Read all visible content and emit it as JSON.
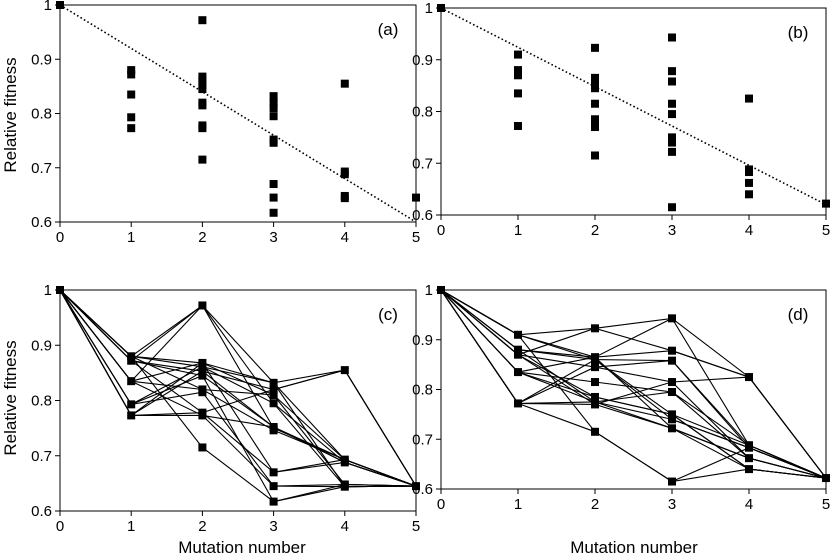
{
  "figure": {
    "ylabel": "Relative fitness",
    "xlabel": "Mutation number"
  },
  "chart_data": [
    {
      "panel": "(a)",
      "type": "scatter",
      "xlim": [
        0,
        5
      ],
      "ylim": [
        0.6,
        1
      ],
      "xticks": [
        "0",
        "1",
        "2",
        "3",
        "4",
        "5"
      ],
      "yticks": [
        "0.6",
        "0.7",
        "0.8",
        "0.9",
        "1"
      ],
      "ylabel": "Relative fitness",
      "xlabel": "",
      "points": [
        [
          0,
          1
        ],
        [
          1,
          0.88
        ],
        [
          1,
          0.872
        ],
        [
          1,
          0.835
        ],
        [
          1,
          0.793
        ],
        [
          1,
          0.773
        ],
        [
          2,
          0.972
        ],
        [
          2,
          0.868
        ],
        [
          2,
          0.861
        ],
        [
          2,
          0.853
        ],
        [
          2,
          0.845
        ],
        [
          2,
          0.82
        ],
        [
          2,
          0.815
        ],
        [
          2,
          0.778
        ],
        [
          2,
          0.773
        ],
        [
          2,
          0.715
        ],
        [
          3,
          0.832
        ],
        [
          3,
          0.82
        ],
        [
          3,
          0.81
        ],
        [
          3,
          0.795
        ],
        [
          3,
          0.752
        ],
        [
          3,
          0.746
        ],
        [
          3,
          0.67
        ],
        [
          3,
          0.645
        ],
        [
          3,
          0.617
        ],
        [
          4,
          0.855
        ],
        [
          4,
          0.693
        ],
        [
          4,
          0.688
        ],
        [
          4,
          0.648
        ],
        [
          4,
          0.644
        ],
        [
          5,
          0.645
        ]
      ],
      "trend_line": {
        "style": "dotted",
        "from": [
          0,
          1
        ],
        "to": [
          5,
          0.6
        ]
      }
    },
    {
      "panel": "(b)",
      "type": "scatter",
      "xlim": [
        0,
        5
      ],
      "ylim": [
        0.6,
        1
      ],
      "xticks": [
        "0",
        "1",
        "2",
        "3",
        "4",
        "5"
      ],
      "yticks": [
        "0.6",
        "0.7",
        "0.8",
        "0.9",
        "1"
      ],
      "ylabel": "",
      "xlabel": "",
      "points": [
        [
          0,
          1
        ],
        [
          1,
          0.91
        ],
        [
          1,
          0.88
        ],
        [
          1,
          0.87
        ],
        [
          1,
          0.835
        ],
        [
          1,
          0.772
        ],
        [
          2,
          0.923
        ],
        [
          2,
          0.865
        ],
        [
          2,
          0.86
        ],
        [
          2,
          0.845
        ],
        [
          2,
          0.815
        ],
        [
          2,
          0.785
        ],
        [
          2,
          0.775
        ],
        [
          2,
          0.77
        ],
        [
          2,
          0.715
        ],
        [
          3,
          0.943
        ],
        [
          3,
          0.878
        ],
        [
          3,
          0.858
        ],
        [
          3,
          0.815
        ],
        [
          3,
          0.795
        ],
        [
          3,
          0.75
        ],
        [
          3,
          0.74
        ],
        [
          3,
          0.722
        ],
        [
          3,
          0.615
        ],
        [
          4,
          0.825
        ],
        [
          4,
          0.688
        ],
        [
          4,
          0.683
        ],
        [
          4,
          0.662
        ],
        [
          4,
          0.64
        ],
        [
          5,
          0.622
        ]
      ],
      "trend_line": {
        "style": "dotted",
        "from": [
          0,
          1
        ],
        "to": [
          5,
          0.62
        ]
      }
    },
    {
      "panel": "(c)",
      "type": "line",
      "xlim": [
        0,
        5
      ],
      "ylim": [
        0.6,
        1
      ],
      "xticks": [
        "0",
        "1",
        "2",
        "3",
        "4",
        "5"
      ],
      "yticks": [
        "0.6",
        "0.7",
        "0.8",
        "0.9",
        "1"
      ],
      "ylabel": "Relative fitness",
      "xlabel": "Mutation number",
      "paths": [
        [
          1,
          0.88,
          0.972,
          0.832,
          0.855,
          0.645
        ],
        [
          1,
          0.872,
          0.972,
          0.75,
          0.693,
          0.645
        ],
        [
          1,
          0.835,
          0.972,
          0.795,
          0.644,
          0.645
        ],
        [
          1,
          0.88,
          0.868,
          0.832,
          0.693,
          0.645
        ],
        [
          1,
          0.88,
          0.861,
          0.795,
          0.688,
          0.645
        ],
        [
          1,
          0.872,
          0.853,
          0.82,
          0.855,
          0.645
        ],
        [
          1,
          0.872,
          0.845,
          0.752,
          0.688,
          0.645
        ],
        [
          1,
          0.835,
          0.868,
          0.81,
          0.648,
          0.645
        ],
        [
          1,
          0.835,
          0.82,
          0.746,
          0.693,
          0.645
        ],
        [
          1,
          0.793,
          0.861,
          0.832,
          0.644,
          0.645
        ],
        [
          1,
          0.793,
          0.815,
          0.645,
          0.648,
          0.645
        ],
        [
          1,
          0.773,
          0.853,
          0.752,
          0.693,
          0.645
        ],
        [
          1,
          0.773,
          0.778,
          0.67,
          0.693,
          0.645
        ],
        [
          1,
          0.773,
          0.773,
          0.752,
          0.688,
          0.645
        ],
        [
          1,
          0.88,
          0.715,
          0.617,
          0.644,
          0.645
        ],
        [
          1,
          0.793,
          0.845,
          0.617,
          0.648,
          0.645
        ],
        [
          1,
          0.835,
          0.773,
          0.645,
          0.644,
          0.645
        ],
        [
          1,
          0.872,
          0.778,
          0.82,
          0.855,
          0.645
        ],
        [
          1,
          0.88,
          0.82,
          0.81,
          0.693,
          0.645
        ],
        [
          1,
          0.773,
          0.868,
          0.67,
          0.688,
          0.645
        ]
      ]
    },
    {
      "panel": "(d)",
      "type": "line",
      "xlim": [
        0,
        5
      ],
      "ylim": [
        0.6,
        1
      ],
      "xticks": [
        "0",
        "1",
        "2",
        "3",
        "4",
        "5"
      ],
      "yticks": [
        "0.6",
        "0.7",
        "0.8",
        "0.9",
        "1"
      ],
      "ylabel": "",
      "xlabel": "Mutation number",
      "paths": [
        [
          1,
          0.91,
          0.923,
          0.878,
          0.825,
          0.622
        ],
        [
          1,
          0.91,
          0.865,
          0.943,
          0.688,
          0.622
        ],
        [
          1,
          0.88,
          0.86,
          0.858,
          0.683,
          0.622
        ],
        [
          1,
          0.87,
          0.845,
          0.815,
          0.662,
          0.622
        ],
        [
          1,
          0.835,
          0.815,
          0.795,
          0.688,
          0.622
        ],
        [
          1,
          0.835,
          0.785,
          0.75,
          0.64,
          0.622
        ],
        [
          1,
          0.772,
          0.775,
          0.74,
          0.683,
          0.622
        ],
        [
          1,
          0.772,
          0.77,
          0.722,
          0.662,
          0.622
        ],
        [
          1,
          0.772,
          0.715,
          0.615,
          0.64,
          0.622
        ],
        [
          1,
          0.88,
          0.865,
          0.878,
          0.825,
          0.622
        ],
        [
          1,
          0.87,
          0.923,
          0.943,
          0.825,
          0.622
        ],
        [
          1,
          0.87,
          0.785,
          0.75,
          0.688,
          0.622
        ],
        [
          1,
          0.91,
          0.86,
          0.74,
          0.683,
          0.622
        ],
        [
          1,
          0.88,
          0.775,
          0.795,
          0.662,
          0.622
        ],
        [
          1,
          0.835,
          0.865,
          0.722,
          0.64,
          0.622
        ],
        [
          1,
          0.772,
          0.845,
          0.858,
          0.688,
          0.622
        ],
        [
          1,
          0.91,
          0.715,
          0.615,
          0.683,
          0.622
        ],
        [
          1,
          0.87,
          0.77,
          0.815,
          0.825,
          0.622
        ],
        [
          1,
          0.772,
          0.86,
          0.75,
          0.64,
          0.622
        ],
        [
          1,
          0.835,
          0.775,
          0.722,
          0.662,
          0.622
        ]
      ]
    }
  ]
}
